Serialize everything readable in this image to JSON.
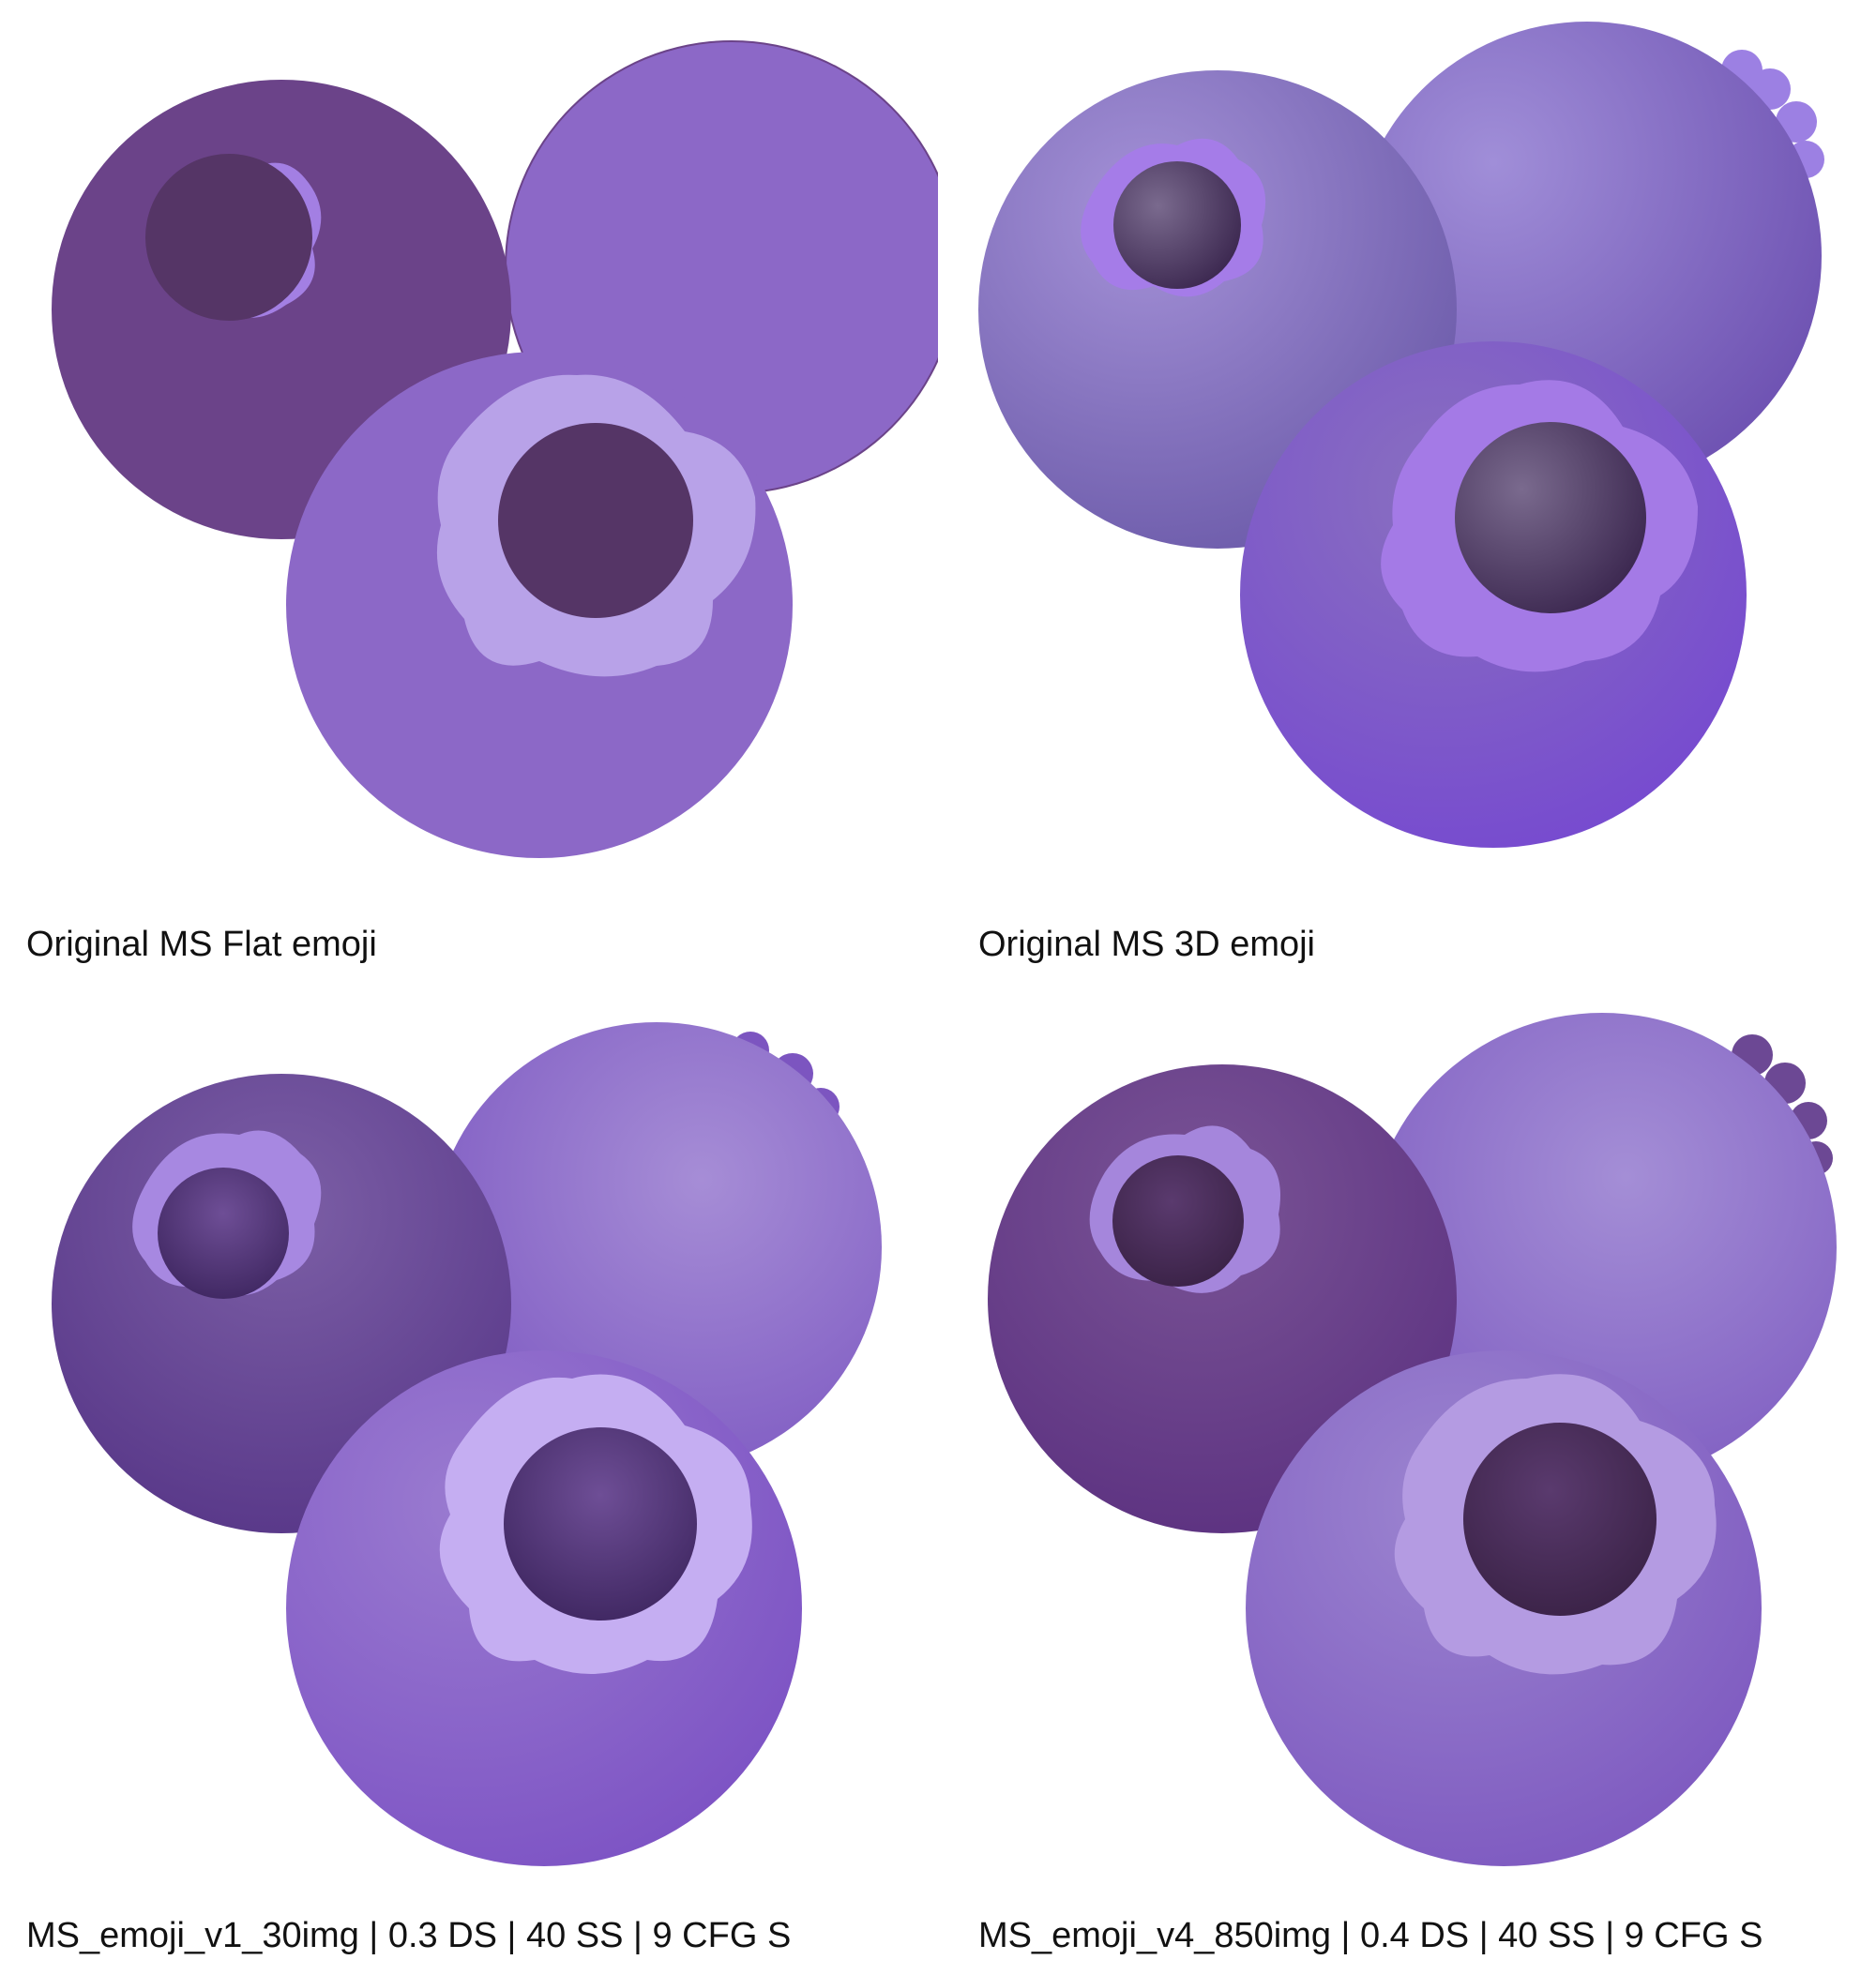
{
  "panels": [
    {
      "caption": "Original MS Flat emoji",
      "style": "flat",
      "colors": {
        "back_berry": "#6B4389",
        "right_berry": "#8C68C7",
        "front_berry": "#8C68C7",
        "crown_back": "#A37FE3",
        "crown_front": "#B8A2E8",
        "hole": "#553566",
        "stem": "#6A4690"
      }
    },
    {
      "caption": "Original MS 3D emoji",
      "style": "3d",
      "colors": {
        "back_berry": "#7F6BBF",
        "right_berry": "#8A74C9",
        "front_berry": "#7A58C6",
        "crown_back": "#A57CE8",
        "crown_front": "#A47AE6",
        "hole": "#4B3764",
        "stem": "#9C80E3"
      }
    },
    {
      "caption": "MS_emoji_v1_30img | 0.3 DS | 40 SS | 9 CFG S",
      "style": "3d",
      "colors": {
        "back_berry": "#654791",
        "right_berry": "#8B6CC8",
        "front_berry": "#8560C4",
        "crown_back": "#A788E1",
        "crown_front": "#C5AEF2",
        "hole": "#4F3276",
        "stem": "#7C55C0"
      }
    },
    {
      "caption": "MS_emoji_v4_850img | 0.4 DS | 40 SS | 9 CFG S",
      "style": "3d",
      "colors": {
        "back_berry": "#6A3F8C",
        "right_berry": "#8A6AC6",
        "front_berry": "#8A6AC6",
        "crown_back": "#A586DC",
        "crown_front": "#B49BE2",
        "hole": "#4A2E5E",
        "stem": "#6C4894"
      }
    }
  ]
}
